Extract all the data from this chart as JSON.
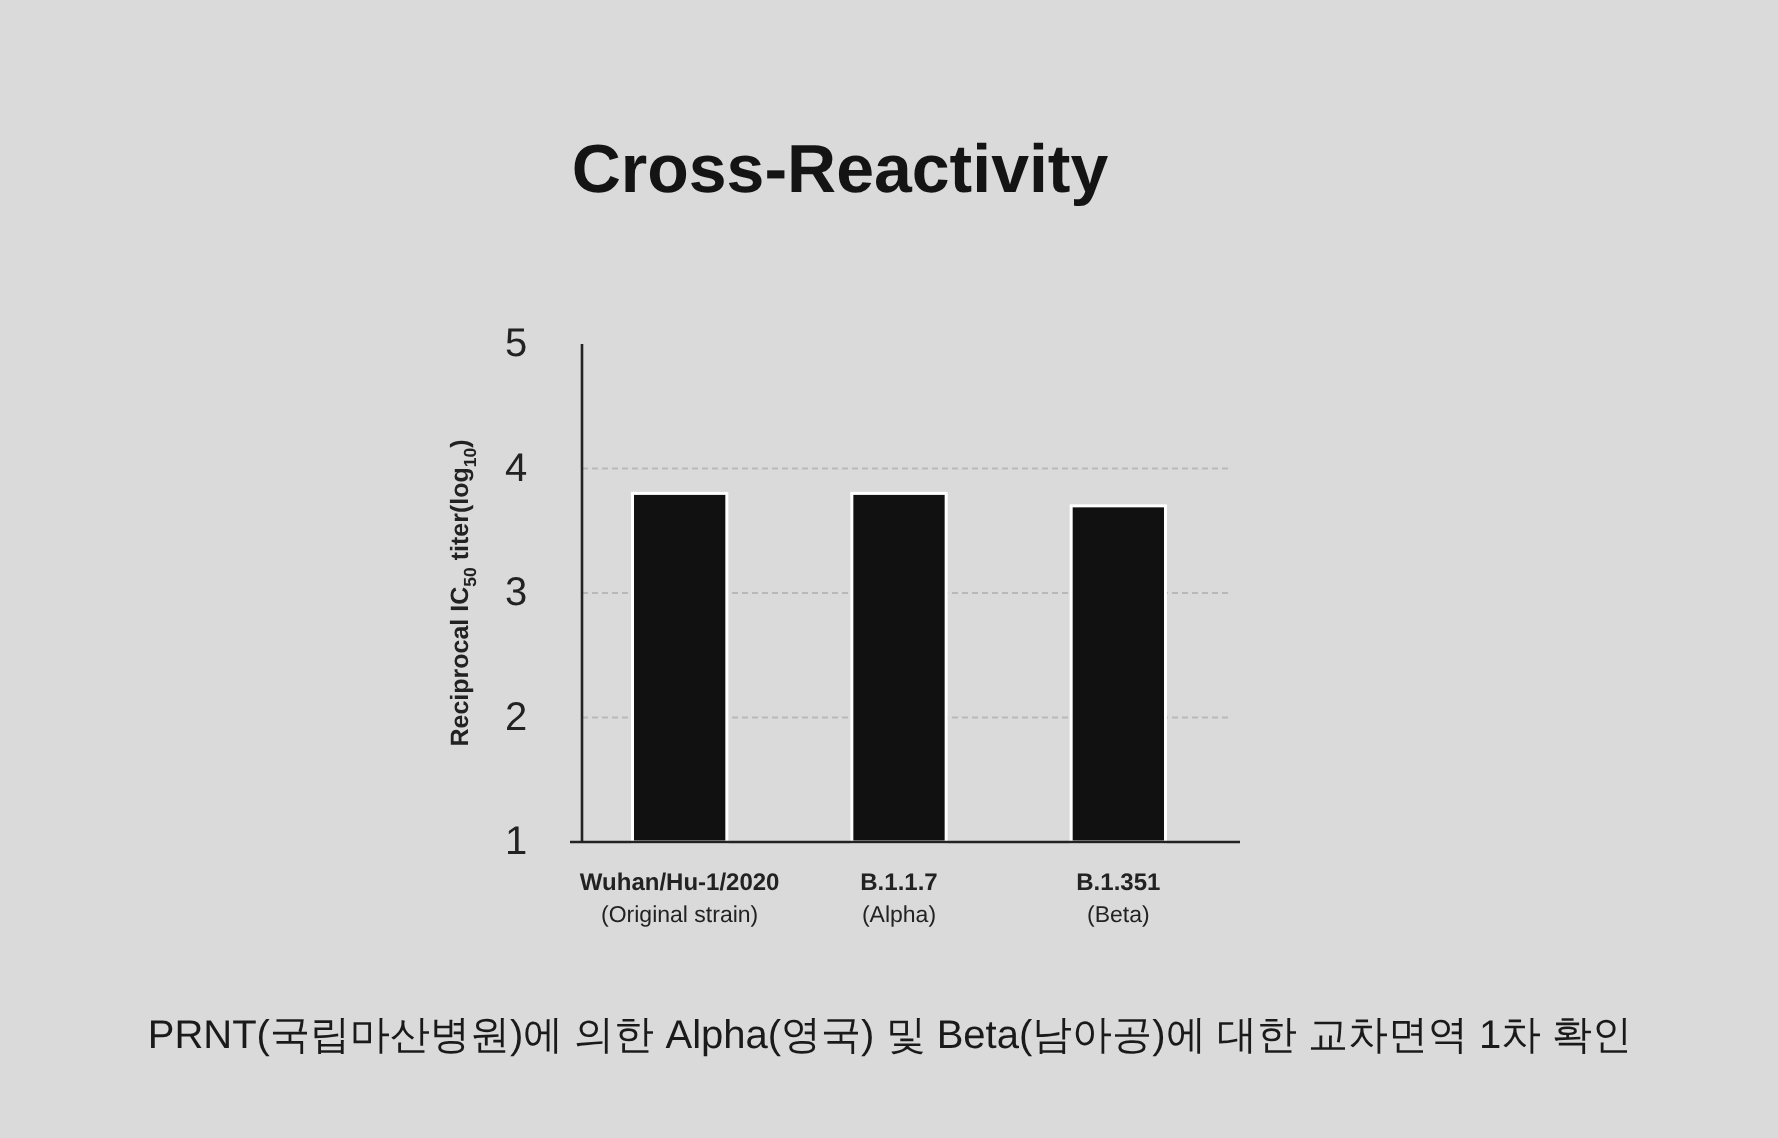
{
  "chart_data": {
    "type": "bar",
    "title": "Cross-Reactivity",
    "ylabel": "Reciprocal IC$_{50}$ titer(log$_{10}$)",
    "categories": [
      "Wuhan/Hu-1/2020\n(Original strain)",
      "B.1.1.7\n(Alpha)",
      "B.1.351\n(Beta)"
    ],
    "values": [
      3.8,
      3.8,
      3.7
    ],
    "color": "#111111",
    "ylim": [
      1,
      5
    ],
    "yticks": [
      1,
      2,
      3,
      4,
      5
    ],
    "grid": "y",
    "annotations": [
      "PRNT(국립마산병원)에 의한 Alpha(영국) 및 Beta(남아공)에 대한 교차면역 1차 확인"
    ]
  }
}
